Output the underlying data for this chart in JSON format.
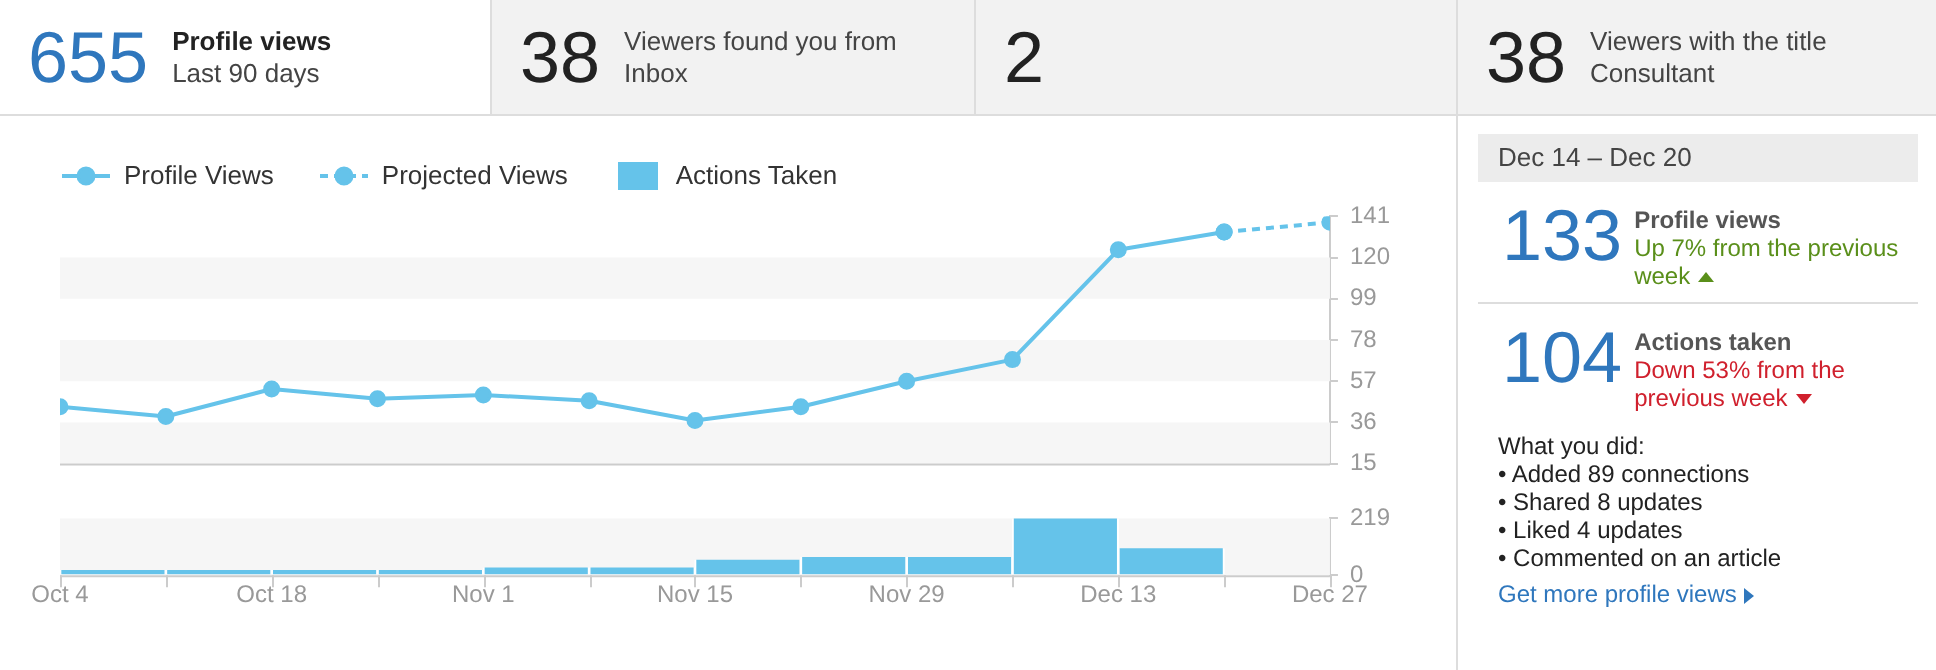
{
  "chart_data": [
    {
      "type": "other",
      "annotations": [
        "655",
        "Profile views",
        "Last 90 days",
        "38",
        "Viewers found you from Inbox",
        "2",
        "38",
        "Viewers with the title Consultant"
      ]
    },
    {
      "type": "line",
      "x": [
        "--10-04",
        "--10-11",
        "--10-18",
        "--10-25",
        "--11-01",
        "--11-08",
        "--11-15",
        "--11-22",
        "--11-29",
        "--12-06",
        "--12-13",
        "--12-20",
        "--12-27"
      ],
      "series": [
        {
          "name": "Profile Views",
          "color": "#65c3ea",
          "marker": "circle",
          "values": [
            44,
            39,
            53,
            48,
            50,
            47,
            37,
            44,
            57,
            68,
            124,
            133,
            null
          ]
        },
        {
          "name": "Projected Views",
          "color": "#65c3ea",
          "marker": "circle",
          "line_style": "dashed",
          "values": [
            null,
            null,
            null,
            null,
            null,
            null,
            null,
            null,
            null,
            null,
            null,
            133,
            138
          ]
        }
      ],
      "xlim": [
        "--10-04",
        "--12-27"
      ],
      "ylim": [
        15,
        141
      ],
      "yticks": [
        15,
        36,
        57,
        78,
        99,
        120,
        141
      ],
      "legend": "top left",
      "tick_labels": "y",
      "bands": [
        {
          "axis": "y",
          "from": 15,
          "to": 36,
          "color": "#f6f6f6"
        },
        {
          "axis": "y",
          "from": 57,
          "to": 78,
          "color": "#f6f6f6"
        },
        {
          "axis": "y",
          "from": 99,
          "to": 120,
          "color": "#f6f6f6"
        }
      ]
    },
    {
      "type": "histogram",
      "bins": [
        "--10-04",
        "--10-11",
        "--10-18",
        "--10-25",
        "--11-01",
        "--11-08",
        "--11-15",
        "--11-22",
        "--11-29",
        "--12-06",
        "--12-13",
        "--12-20"
      ],
      "series": [
        {
          "name": "Actions Taken",
          "color": "#65c3ea",
          "values": [
            20,
            20,
            20,
            20,
            30,
            30,
            60,
            70,
            70,
            219,
            104
          ]
        }
      ],
      "xlim": [
        "--10-04",
        "--12-27"
      ],
      "xticks": [
        {
          "value": "--10-04",
          "label": "Oct 4"
        },
        {
          "value": "--10-11",
          "label": null
        },
        {
          "value": "--10-18",
          "label": "Oct 18"
        },
        {
          "value": "--10-25",
          "label": null
        },
        {
          "value": "--11-01",
          "label": "Nov 1"
        },
        {
          "value": "--11-08",
          "label": null
        },
        {
          "value": "--11-15",
          "label": "Nov 15"
        },
        {
          "value": "--11-22",
          "label": null
        },
        {
          "value": "--11-29",
          "label": "Nov 29"
        },
        {
          "value": "--12-06",
          "label": null
        },
        {
          "value": "--12-13",
          "label": "Dec 13"
        },
        {
          "value": "--12-20",
          "label": null
        },
        {
          "value": "--12-27",
          "label": "Dec 27"
        }
      ],
      "ylim": [
        0,
        219
      ],
      "yticks": [
        0,
        219
      ],
      "legend": "top left",
      "bands": [
        {
          "axis": "y",
          "from": 0,
          "to": 219,
          "color": "#f6f6f6"
        }
      ]
    },
    {
      "type": "other",
      "annotations": [
        "Dec 14 – Dec 20",
        "133",
        "Profile views",
        "Up 7% from the previous week",
        "104",
        "Actions taken",
        "Down 53% from the previous week",
        "What you did:",
        "• Added 89 connections",
        "• Shared 8 updates",
        "• Liked 4 updates",
        "• Commented on an article",
        "Get more profile views"
      ]
    }
  ]
}
